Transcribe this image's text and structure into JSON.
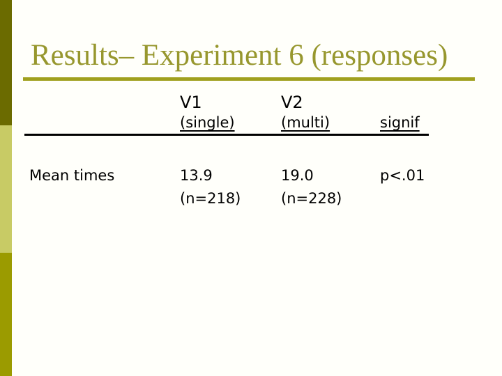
{
  "slide": {
    "title": "Results– Experiment 6 (responses)"
  },
  "table": {
    "header": {
      "v1": {
        "title": "V1",
        "subtitle": "(single)"
      },
      "v2": {
        "title": "V2",
        "subtitle": "(multi)"
      },
      "signif": {
        "subtitle": "signif"
      }
    },
    "row": {
      "label": "Mean times",
      "v1": {
        "value": "13.9",
        "n": "(n=218)"
      },
      "v2": {
        "value": "19.0",
        "n": "(n=228)"
      },
      "signif": "p<.01"
    }
  },
  "colors": {
    "background": "#FFFFFA",
    "title_text": "#97972E",
    "title_rule": "#A0A01E",
    "sidebar_top": "#6B6B00",
    "sidebar_middle": "#C8CB65",
    "sidebar_bottom": "#9B9B00",
    "table_text": "#000000"
  }
}
